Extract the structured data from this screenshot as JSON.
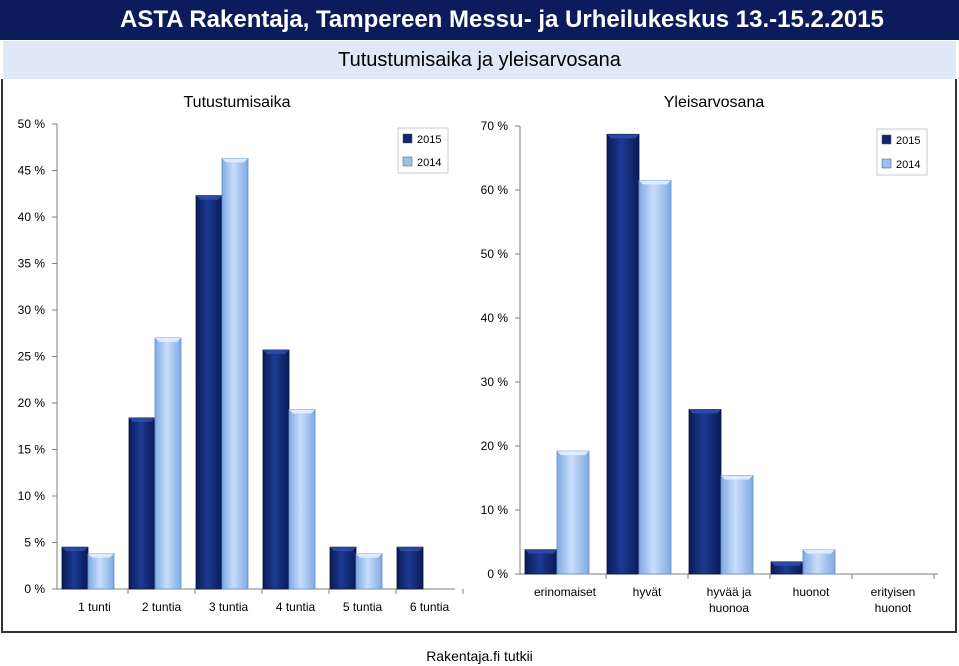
{
  "header": {
    "title": "ASTA Rakentaja, Tampereen Messu- ja Urheilukeskus 13.-15.2.2015"
  },
  "subheader": {
    "title": "Tutustumisaika ja yleisarvosana"
  },
  "footer": {
    "text": "Rakentaja.fi tutkii"
  },
  "colors": {
    "dark_series": "#0f2672",
    "light_series": "#99c1ef"
  },
  "chart_data": [
    {
      "type": "bar",
      "title": "Tutustumisaika",
      "categories": [
        "1 tunti",
        "2 tuntia",
        "3 tuntia",
        "4 tuntia",
        "5 tuntia",
        "6 tuntia"
      ],
      "series": [
        {
          "name": "2015",
          "values": [
            4.5,
            18.4,
            42.3,
            25.7,
            4.5,
            4.5
          ]
        },
        {
          "name": "2014",
          "values": [
            3.8,
            27.0,
            46.3,
            19.3,
            3.8,
            0
          ]
        }
      ],
      "ylim": [
        0,
        50
      ],
      "yticks": [
        "0 %",
        "5 %",
        "10 %",
        "15 %",
        "20 %",
        "25 %",
        "30 %",
        "35 %",
        "40 %",
        "45 %",
        "50 %"
      ],
      "grid": false,
      "legend": "top-right"
    },
    {
      "type": "bar",
      "title": "Yleisarvosana",
      "categories": [
        "erinomaiset",
        "hyvät",
        "hyvää ja huonoa",
        "huonot",
        "erityisen huonot"
      ],
      "category_lines": [
        [
          "erinomaiset"
        ],
        [
          "hyvät"
        ],
        [
          "hyvää ja",
          "huonoa"
        ],
        [
          "huonot"
        ],
        [
          "erityisen",
          "huonot"
        ]
      ],
      "series": [
        {
          "name": "2015",
          "values": [
            3.8,
            68.7,
            25.7,
            1.9,
            0
          ]
        },
        {
          "name": "2014",
          "values": [
            19.2,
            61.5,
            15.4,
            3.8,
            0
          ]
        }
      ],
      "ylim": [
        0,
        70
      ],
      "yticks": [
        "0 %",
        "10 %",
        "20 %",
        "30 %",
        "40 %",
        "50 %",
        "60 %",
        "70 %"
      ],
      "grid": false,
      "legend": "top-right"
    }
  ]
}
